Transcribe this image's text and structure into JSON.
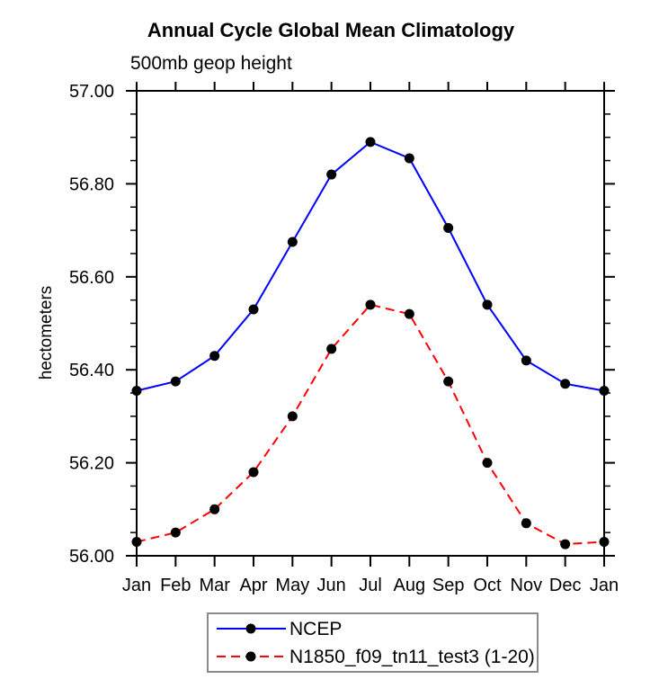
{
  "page": {
    "background": "#ffffff",
    "axis_color": "#000000",
    "legend_border_color": "#8a8a8a"
  },
  "chart_data": {
    "type": "line",
    "title": "Annual Cycle Global Mean Climatology",
    "subtitle": "500mb geop height",
    "ylabel": "hectometers",
    "xlabel": "",
    "categories": [
      "Jan",
      "Feb",
      "Mar",
      "Apr",
      "May",
      "Jun",
      "Jul",
      "Aug",
      "Sep",
      "Oct",
      "Nov",
      "Dec",
      "Jan"
    ],
    "ylim": [
      56.0,
      57.0
    ],
    "y_major_ticks": [
      {
        "value": 57.0,
        "label": "57.00"
      },
      {
        "value": 56.8,
        "label": "56.80"
      },
      {
        "value": 56.6,
        "label": "56.60"
      },
      {
        "value": 56.4,
        "label": "56.40"
      },
      {
        "value": 56.2,
        "label": "56.20"
      },
      {
        "value": 56.0,
        "label": "56.00"
      }
    ],
    "y_minor_tick_step": 0.05,
    "grid": false,
    "legend_position": "bottom-center",
    "series": [
      {
        "name": "NCEP",
        "line_color": "#0000ff",
        "line_style": "solid",
        "marker": "circle",
        "marker_color": "#000000",
        "values": [
          56.355,
          56.375,
          56.43,
          56.53,
          56.675,
          56.82,
          56.89,
          56.855,
          56.705,
          56.54,
          56.42,
          56.37,
          56.355
        ]
      },
      {
        "name": "N1850_f09_tn11_test3 (1-20)",
        "line_color": "#ff0000",
        "line_style": "dashed",
        "marker": "circle",
        "marker_color": "#000000",
        "values": [
          56.03,
          56.05,
          56.1,
          56.18,
          56.3,
          56.445,
          56.54,
          56.52,
          56.375,
          56.2,
          56.07,
          56.025,
          56.03
        ]
      }
    ]
  }
}
